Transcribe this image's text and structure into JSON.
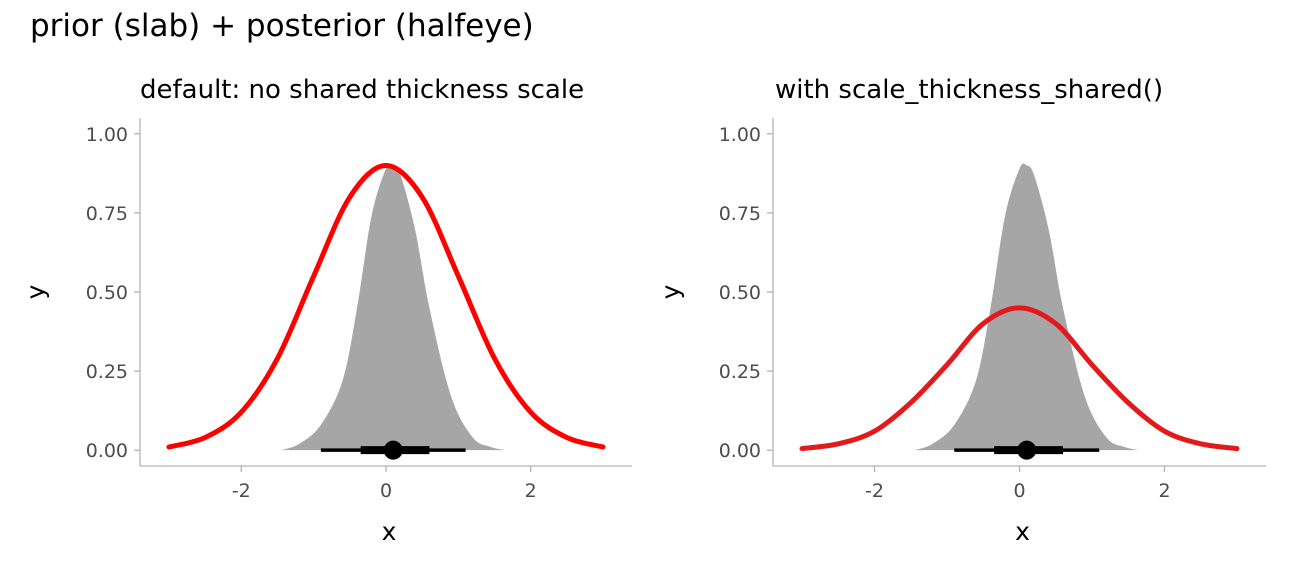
{
  "figure_title": "prior (slab) + posterior (halfeye)",
  "chart_data": [
    {
      "type": "area",
      "title": "default: no shared thickness scale",
      "xlabel": "x",
      "ylabel": "y",
      "xlim": [
        -3.4,
        3.4
      ],
      "ylim": [
        -0.05,
        1.05
      ],
      "x_ticks": [
        -2,
        0,
        2
      ],
      "x_tick_labels": [
        "-2",
        "0",
        "2"
      ],
      "y_ticks": [
        0,
        0.25,
        0.5,
        0.75,
        1
      ],
      "y_tick_labels": [
        "0.00",
        "0.25",
        "0.50",
        "0.75",
        "1.00"
      ],
      "grid": false,
      "series": [
        {
          "kind": "slab",
          "color": "#ff0000",
          "x": [
            -3.0,
            -2.5,
            -2.0,
            -1.5,
            -1.0,
            -0.5,
            0.0,
            0.5,
            1.0,
            1.5,
            2.0,
            2.5,
            3.0
          ],
          "y": [
            0.01,
            0.04,
            0.12,
            0.29,
            0.55,
            0.8,
            0.9,
            0.8,
            0.55,
            0.29,
            0.12,
            0.04,
            0.01
          ]
        },
        {
          "kind": "halfeye",
          "color": "#a6a6a6",
          "x": [
            -1.45,
            -1.2,
            -0.9,
            -0.6,
            -0.4,
            -0.2,
            0.0,
            0.1,
            0.2,
            0.4,
            0.6,
            0.9,
            1.2,
            1.45,
            1.65
          ],
          "y": [
            0.0,
            0.02,
            0.08,
            0.22,
            0.45,
            0.74,
            0.89,
            0.9,
            0.87,
            0.7,
            0.45,
            0.17,
            0.04,
            0.01,
            0.0
          ],
          "point": 0.1,
          "interval_66": [
            -0.35,
            0.6
          ],
          "interval_95": [
            -0.9,
            1.1
          ]
        }
      ]
    },
    {
      "type": "area",
      "title": "with scale_thickness_shared()",
      "xlabel": "x",
      "ylabel": "y",
      "xlim": [
        -3.4,
        3.4
      ],
      "ylim": [
        -0.05,
        1.05
      ],
      "x_ticks": [
        -2,
        0,
        2
      ],
      "x_tick_labels": [
        "-2",
        "0",
        "2"
      ],
      "y_ticks": [
        0,
        0.25,
        0.5,
        0.75,
        1
      ],
      "y_tick_labels": [
        "0.00",
        "0.25",
        "0.50",
        "0.75",
        "1.00"
      ],
      "grid": false,
      "series": [
        {
          "kind": "slab",
          "color": "#e31a1c",
          "x": [
            -3.0,
            -2.5,
            -2.0,
            -1.5,
            -1.0,
            -0.5,
            0.0,
            0.5,
            1.0,
            1.5,
            2.0,
            2.5,
            3.0
          ],
          "y": [
            0.005,
            0.02,
            0.06,
            0.15,
            0.27,
            0.4,
            0.45,
            0.4,
            0.27,
            0.15,
            0.06,
            0.02,
            0.005
          ]
        },
        {
          "kind": "halfeye",
          "color": "#a6a6a6",
          "x": [
            -1.45,
            -1.2,
            -0.9,
            -0.6,
            -0.4,
            -0.2,
            0.0,
            0.1,
            0.2,
            0.4,
            0.6,
            0.9,
            1.2,
            1.45,
            1.65
          ],
          "y": [
            0.0,
            0.02,
            0.08,
            0.22,
            0.45,
            0.74,
            0.89,
            0.9,
            0.87,
            0.7,
            0.45,
            0.17,
            0.04,
            0.01,
            0.0
          ],
          "point": 0.1,
          "interval_66": [
            -0.35,
            0.6
          ],
          "interval_95": [
            -0.9,
            1.1
          ]
        }
      ]
    }
  ]
}
